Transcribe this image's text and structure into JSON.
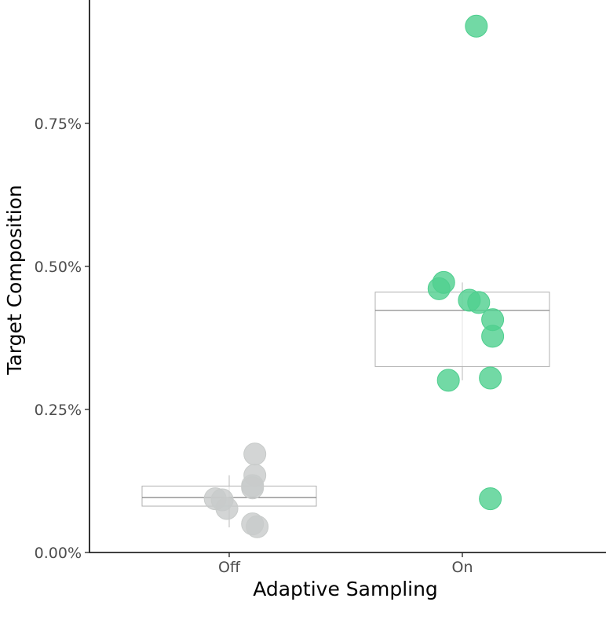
{
  "chart_data": {
    "type": "boxplot-jitter",
    "title": "",
    "xlabel": "Adaptive Sampling",
    "ylabel": "Target Composition",
    "ylim": [
      0,
      0.95
    ],
    "yticks": [
      {
        "value": 0.0,
        "label": "0.00%"
      },
      {
        "value": 0.25,
        "label": "0.25%"
      },
      {
        "value": 0.5,
        "label": "0.50%"
      },
      {
        "value": 0.75,
        "label": "0.75%"
      }
    ],
    "categories": [
      "Off",
      "On"
    ],
    "groups": [
      {
        "name": "Off",
        "color": "#c8cbca",
        "box": {
          "q1": 0.081,
          "median": 0.096,
          "q3": 0.116,
          "whisker_low": 0.044,
          "whisker_high": 0.135
        },
        "points": [
          {
            "offset": 0.11,
            "value": 0.172
          },
          {
            "offset": 0.11,
            "value": 0.135
          },
          {
            "offset": 0.1,
            "value": 0.117
          },
          {
            "offset": 0.1,
            "value": 0.113
          },
          {
            "offset": -0.06,
            "value": 0.094
          },
          {
            "offset": -0.03,
            "value": 0.092
          },
          {
            "offset": -0.01,
            "value": 0.077
          },
          {
            "offset": 0.1,
            "value": 0.05
          },
          {
            "offset": 0.12,
            "value": 0.045
          }
        ]
      },
      {
        "name": "On",
        "color": "#4fcf8f",
        "box": {
          "q1": 0.325,
          "median": 0.423,
          "q3": 0.455,
          "whisker_low": 0.301,
          "whisker_high": 0.472
        },
        "points": [
          {
            "offset": 0.06,
            "value": 0.92
          },
          {
            "offset": -0.08,
            "value": 0.472
          },
          {
            "offset": -0.1,
            "value": 0.461
          },
          {
            "offset": 0.03,
            "value": 0.441
          },
          {
            "offset": 0.07,
            "value": 0.437
          },
          {
            "offset": 0.13,
            "value": 0.407
          },
          {
            "offset": 0.13,
            "value": 0.378
          },
          {
            "offset": -0.06,
            "value": 0.301
          },
          {
            "offset": 0.12,
            "value": 0.305
          },
          {
            "offset": 0.12,
            "value": 0.094
          }
        ]
      }
    ]
  }
}
